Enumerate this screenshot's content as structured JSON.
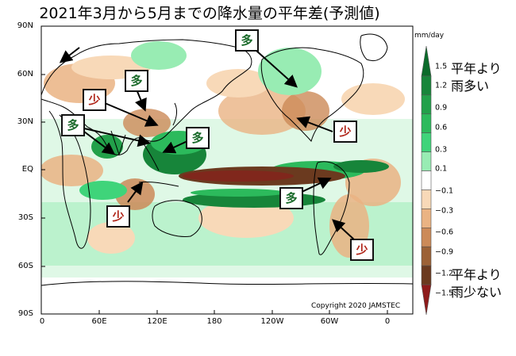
{
  "title": "2021年3月から5月までの降水量の平年差(予測値)",
  "y_axis_labels": [
    "90N",
    "60N",
    "30N",
    "EQ",
    "30S",
    "60S",
    "90S"
  ],
  "x_axis_labels": [
    "0",
    "60E",
    "120E",
    "180",
    "120W",
    "60W",
    "0"
  ],
  "copyright": "Copyright 2020 JAMSTEC",
  "colorbar": {
    "unit": "mm/day",
    "levels": [
      "1.5",
      "1.2",
      "0.9",
      "0.6",
      "0.3",
      "0.1",
      "−0.1",
      "−0.3",
      "−0.6",
      "−0.9",
      "−1.2",
      "−1.5"
    ],
    "colors": [
      "#0b6b2a",
      "#17853a",
      "#22a04a",
      "#2cba5c",
      "#3fd47a",
      "#98ecb3",
      "#ffffff",
      "#f8d9b8",
      "#eab383",
      "#cc8a58",
      "#9c6136",
      "#6b3a1f",
      "#8e1b1b"
    ]
  },
  "wet_note": [
    "平年より",
    "雨多い"
  ],
  "dry_note": [
    "平年より",
    "雨少ない"
  ],
  "callouts": {
    "wet_label": "多",
    "dry_label": "少"
  },
  "colors": {
    "wet": "#1a6a2a",
    "dry": "#b02418"
  }
}
